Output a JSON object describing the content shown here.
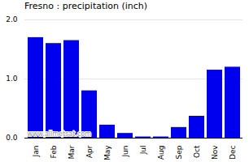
{
  "chart_data": {
    "type": "bar",
    "title": "Fresno : precipitation (inch)",
    "categories": [
      "Jan",
      "Feb",
      "Mar",
      "Apr",
      "May",
      "Jun",
      "Jul",
      "Aug",
      "Sep",
      "Oct",
      "Nov",
      "Dec"
    ],
    "values": [
      1.7,
      1.6,
      1.65,
      0.8,
      0.22,
      0.08,
      0.02,
      0.02,
      0.18,
      0.37,
      1.15,
      1.2
    ],
    "color": "#0000EE",
    "ylim": [
      0,
      2
    ],
    "yticks": [
      0,
      1,
      2
    ],
    "grid": true,
    "annotation": "www.allmetsat.com"
  }
}
